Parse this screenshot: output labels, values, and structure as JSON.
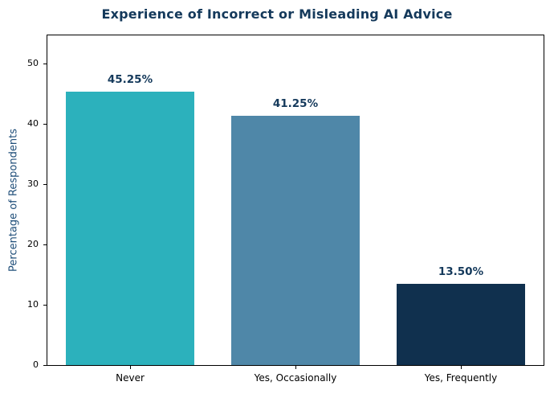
{
  "chart_data": {
    "type": "bar",
    "title": "Experience of Incorrect or Misleading AI Advice",
    "categories": [
      "Never",
      "Yes, Occasionally",
      "Yes, Frequently"
    ],
    "values": [
      45.25,
      41.25,
      13.5
    ],
    "value_labels": [
      "45.25%",
      "41.25%",
      "13.50%"
    ],
    "bar_colors": [
      "#2cb1bc",
      "#4f87a8",
      "#10304e"
    ],
    "xlabel": "",
    "ylabel": "Percentage of Respondents",
    "ylim": [
      0,
      54.6
    ],
    "yticks": [
      0,
      10,
      20,
      30,
      40,
      50
    ],
    "grid": false,
    "legend_position": "none",
    "colors": {
      "title": "#14395b",
      "ylabel": "#1f4e79",
      "value_label": "#14395b",
      "tick_label": "#000000",
      "spine": "#000000",
      "background": "#ffffff"
    }
  }
}
